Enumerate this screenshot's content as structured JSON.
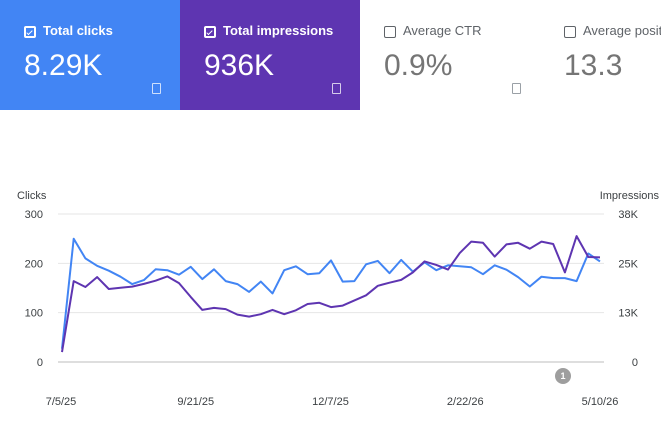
{
  "metrics": [
    {
      "label": "Total clicks",
      "value": "8.29K",
      "selected": true,
      "color": "#4285f4"
    },
    {
      "label": "Total impressions",
      "value": "936K",
      "selected": true,
      "color": "#5e35b1"
    },
    {
      "label": "Average CTR",
      "value": "0.9%",
      "selected": false
    },
    {
      "label": "Average positi",
      "value": "13.3",
      "selected": false
    }
  ],
  "chart_data": {
    "type": "line",
    "left_axis": {
      "label": "Clicks",
      "ticks": [
        "300",
        "200",
        "100",
        "0"
      ],
      "ylim": [
        0,
        300
      ]
    },
    "right_axis": {
      "label": "Impressions",
      "ticks": [
        "38K",
        "25K",
        "13K",
        "0"
      ],
      "ylim": [
        0,
        37500
      ]
    },
    "x_ticks": [
      "7/5/25",
      "9/21/25",
      "12/7/25",
      "2/22/26",
      "5/10/26"
    ],
    "grid": true,
    "annotation": "1",
    "series": [
      {
        "axis": "left",
        "color": "#4285f4",
        "values": [
          27,
          250,
          210,
          195,
          185,
          173,
          158,
          166,
          188,
          186,
          177,
          193,
          168,
          188,
          164,
          158,
          142,
          163,
          139,
          186,
          194,
          178,
          180,
          206,
          163,
          164,
          198,
          205,
          180,
          207,
          183,
          202,
          186,
          196,
          194,
          192,
          178,
          196,
          187,
          172,
          153,
          173,
          170,
          170,
          164,
          220,
          204
        ]
      },
      {
        "axis": "right",
        "color": "#5e35b1",
        "values": [
          2500,
          20500,
          19000,
          21500,
          18500,
          18800,
          19100,
          19800,
          20600,
          21700,
          20000,
          16500,
          13200,
          13700,
          13400,
          12000,
          11500,
          12100,
          13200,
          12100,
          13100,
          14700,
          15000,
          13900,
          14300,
          15600,
          16900,
          19300,
          20100,
          20800,
          22700,
          25500,
          24600,
          23400,
          27600,
          30500,
          30200,
          26700,
          29800,
          30200,
          28700,
          30500,
          29900,
          22700,
          31900,
          26600,
          26500
        ]
      }
    ]
  }
}
